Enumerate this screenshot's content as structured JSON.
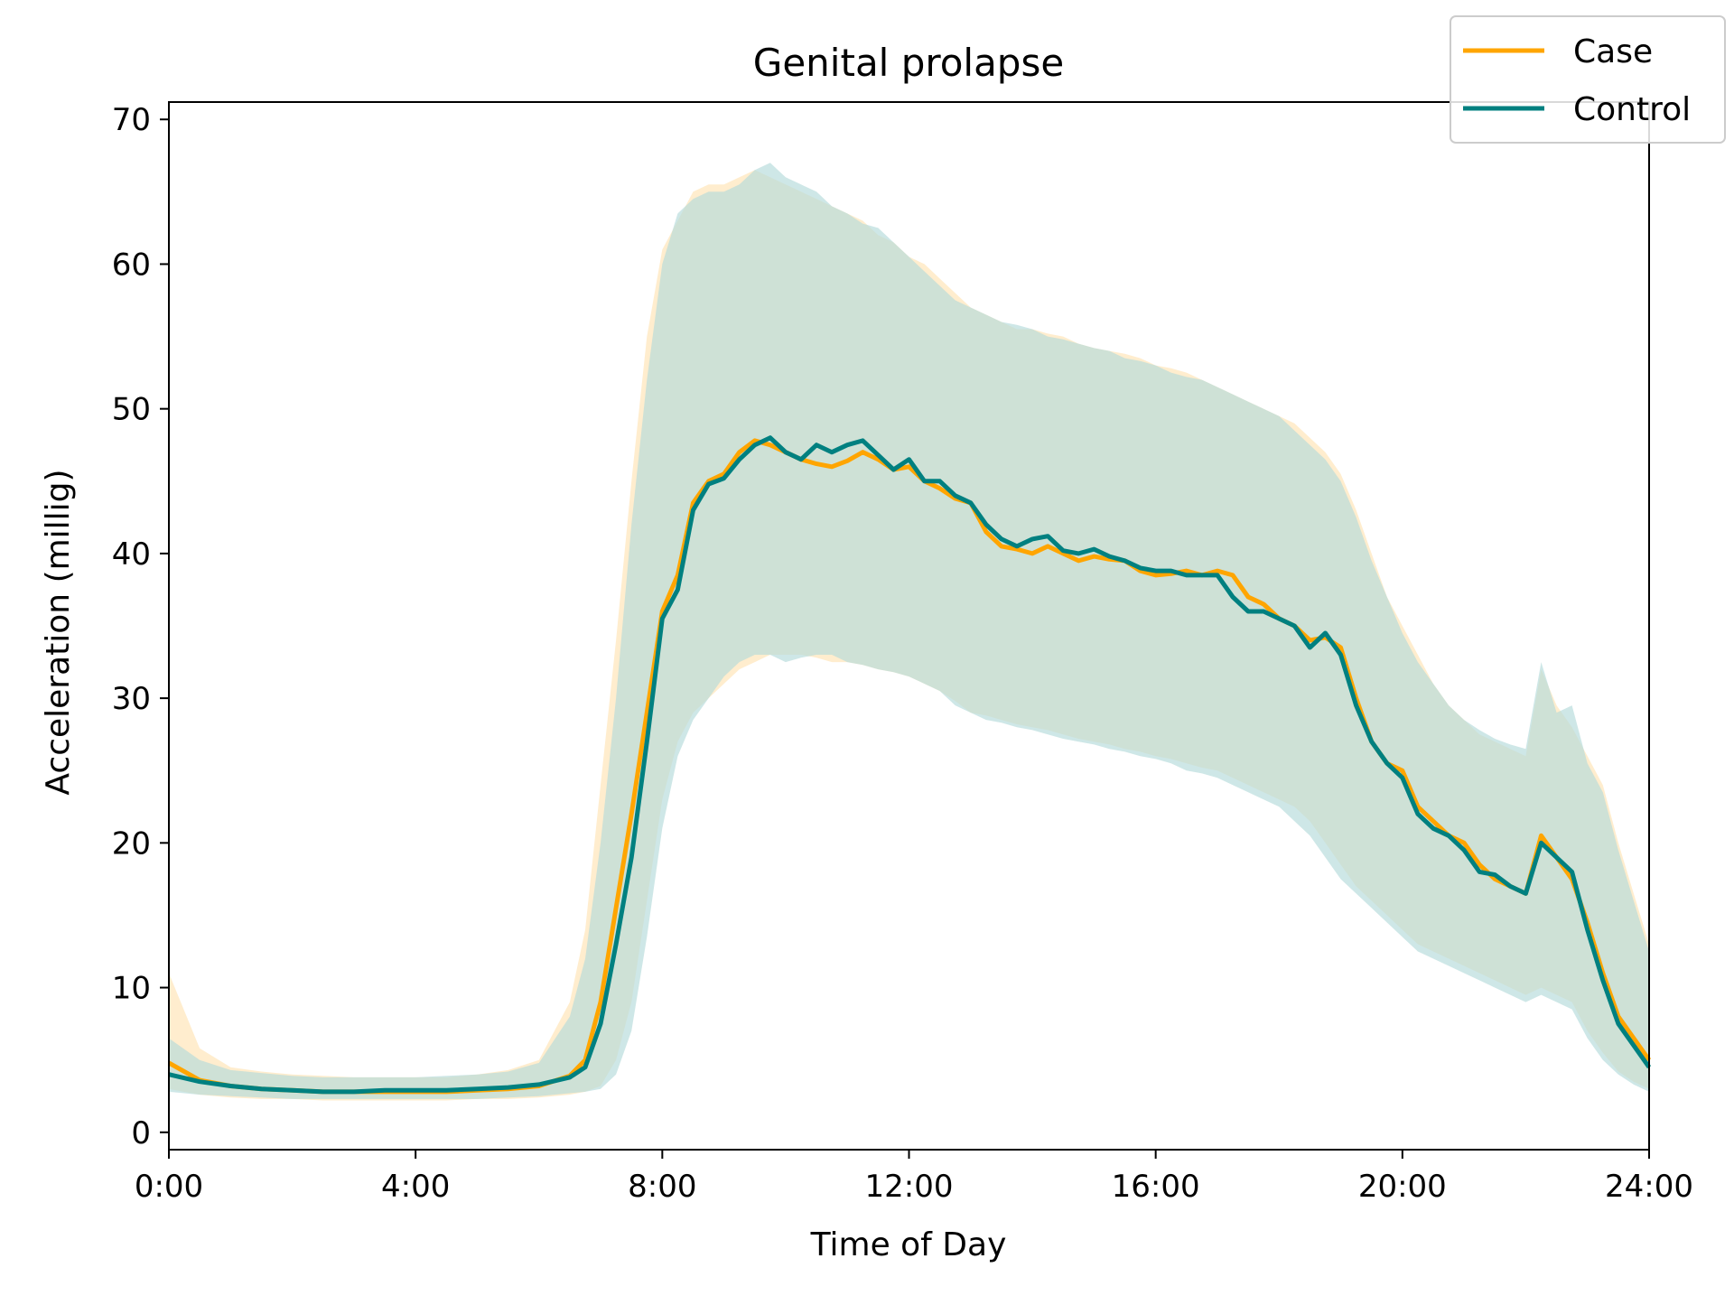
{
  "chart_data": {
    "type": "line",
    "title": "Genital prolapse",
    "xlabel": "Time of Day",
    "ylabel": "Acceleration (millig)",
    "xlim": [
      0,
      24
    ],
    "ylim": [
      -1.2,
      71.2
    ],
    "x_ticks": [
      {
        "value": 0,
        "label": "0:00"
      },
      {
        "value": 4,
        "label": "4:00"
      },
      {
        "value": 8,
        "label": "8:00"
      },
      {
        "value": 12,
        "label": "12:00"
      },
      {
        "value": 16,
        "label": "16:00"
      },
      {
        "value": 20,
        "label": "20:00"
      },
      {
        "value": 24,
        "label": "24:00"
      }
    ],
    "y_ticks": [
      {
        "value": 0,
        "label": "0"
      },
      {
        "value": 10,
        "label": "10"
      },
      {
        "value": 20,
        "label": "20"
      },
      {
        "value": 30,
        "label": "30"
      },
      {
        "value": 40,
        "label": "40"
      },
      {
        "value": 50,
        "label": "50"
      },
      {
        "value": 60,
        "label": "60"
      },
      {
        "value": 70,
        "label": "70"
      }
    ],
    "grid": false,
    "legend": {
      "position": "top-right"
    },
    "x": [
      0,
      0.5,
      1,
      1.5,
      2,
      2.5,
      3,
      3.5,
      4,
      4.5,
      5,
      5.5,
      6,
      6.5,
      6.75,
      7,
      7.25,
      7.5,
      7.75,
      8,
      8.25,
      8.5,
      8.75,
      9,
      9.25,
      9.5,
      9.75,
      10,
      10.25,
      10.5,
      10.75,
      11,
      11.25,
      11.5,
      11.75,
      12,
      12.25,
      12.5,
      12.75,
      13,
      13.25,
      13.5,
      13.75,
      14,
      14.25,
      14.5,
      14.75,
      15,
      15.25,
      15.5,
      15.75,
      16,
      16.25,
      16.5,
      16.75,
      17,
      17.25,
      17.5,
      17.75,
      18,
      18.25,
      18.5,
      18.75,
      19,
      19.25,
      19.5,
      19.75,
      20,
      20.25,
      20.5,
      20.75,
      21,
      21.25,
      21.5,
      21.75,
      22,
      22.25,
      22.5,
      22.75,
      23,
      23.25,
      23.5,
      23.75,
      24
    ],
    "series": [
      {
        "name": "Case",
        "color": "#ffa500",
        "band_color": "#ffe4b3",
        "values": [
          4.8,
          3.6,
          3.2,
          3.0,
          2.9,
          2.8,
          2.8,
          2.8,
          2.8,
          2.8,
          2.9,
          3.0,
          3.2,
          3.9,
          5.0,
          9.0,
          15.5,
          22.0,
          29.0,
          36.0,
          38.5,
          43.5,
          45.0,
          45.5,
          47.0,
          47.8,
          47.5,
          47.0,
          46.5,
          46.2,
          46.0,
          46.4,
          47.0,
          46.5,
          45.8,
          46.0,
          45.0,
          44.5,
          43.8,
          43.5,
          41.5,
          40.5,
          40.3,
          40.0,
          40.5,
          40.0,
          39.5,
          39.8,
          39.6,
          39.5,
          38.8,
          38.5,
          38.6,
          38.8,
          38.5,
          38.8,
          38.5,
          37.0,
          36.5,
          35.5,
          35.0,
          34.0,
          34.2,
          33.5,
          30.0,
          27.0,
          25.5,
          25.0,
          22.5,
          21.5,
          20.5,
          20.0,
          18.5,
          17.5,
          17.0,
          16.5,
          20.5,
          19.0,
          17.5,
          14.5,
          11.0,
          8.0,
          6.5,
          5.0
        ],
        "upper": [
          11.0,
          5.8,
          4.5,
          4.2,
          4.0,
          3.9,
          3.8,
          3.8,
          3.8,
          3.8,
          4.0,
          4.3,
          5.0,
          9.0,
          14.0,
          24.0,
          34.0,
          45.0,
          55.0,
          61.0,
          63.0,
          65.0,
          65.5,
          65.5,
          66.0,
          66.5,
          66.0,
          65.5,
          65.0,
          64.5,
          64.0,
          63.5,
          63.0,
          62.0,
          61.5,
          60.5,
          60.0,
          59.0,
          58.0,
          57.0,
          56.5,
          56.0,
          55.5,
          55.5,
          55.2,
          55.0,
          54.5,
          54.2,
          54.0,
          53.8,
          53.5,
          53.0,
          52.8,
          52.5,
          52.0,
          51.5,
          51.0,
          50.5,
          50.0,
          49.5,
          49.0,
          48.0,
          47.0,
          45.5,
          43.0,
          40.0,
          37.0,
          35.0,
          33.0,
          31.0,
          29.5,
          28.5,
          27.5,
          27.0,
          26.5,
          26.0,
          32.0,
          29.5,
          28.0,
          26.0,
          24.0,
          20.0,
          16.5,
          13.0
        ],
        "lower": [
          3.0,
          2.6,
          2.4,
          2.3,
          2.3,
          2.2,
          2.2,
          2.2,
          2.2,
          2.2,
          2.3,
          2.3,
          2.4,
          2.6,
          2.8,
          3.2,
          5.0,
          9.0,
          16.0,
          23.0,
          27.0,
          29.0,
          30.0,
          31.0,
          32.0,
          32.5,
          33.0,
          33.0,
          33.0,
          32.8,
          32.5,
          32.5,
          32.3,
          32.0,
          31.8,
          31.5,
          31.0,
          30.5,
          29.8,
          29.0,
          28.8,
          28.5,
          28.2,
          28.0,
          27.8,
          27.5,
          27.2,
          27.0,
          26.8,
          26.5,
          26.3,
          26.0,
          25.8,
          25.5,
          25.2,
          25.0,
          24.5,
          24.0,
          23.5,
          23.0,
          22.5,
          21.5,
          20.0,
          18.5,
          17.0,
          16.0,
          15.0,
          14.0,
          13.0,
          12.5,
          12.0,
          11.5,
          11.0,
          10.5,
          10.0,
          9.5,
          10.0,
          9.5,
          9.0,
          7.0,
          5.5,
          4.2,
          3.5,
          3.0
        ]
      },
      {
        "name": "Control",
        "color": "#008080",
        "band_color": "#b3dada",
        "values": [
          4.0,
          3.5,
          3.2,
          3.0,
          2.9,
          2.8,
          2.8,
          2.9,
          2.9,
          2.9,
          3.0,
          3.1,
          3.3,
          3.8,
          4.5,
          7.5,
          13.0,
          19.0,
          27.0,
          35.5,
          37.5,
          43.0,
          44.8,
          45.2,
          46.5,
          47.5,
          48.0,
          47.0,
          46.5,
          47.5,
          47.0,
          47.5,
          47.8,
          46.8,
          45.8,
          46.5,
          45.0,
          45.0,
          44.0,
          43.5,
          42.0,
          41.0,
          40.5,
          41.0,
          41.2,
          40.2,
          40.0,
          40.3,
          39.8,
          39.5,
          39.0,
          38.8,
          38.8,
          38.5,
          38.5,
          38.5,
          37.0,
          36.0,
          36.0,
          35.5,
          35.0,
          33.5,
          34.5,
          33.0,
          29.5,
          27.0,
          25.5,
          24.5,
          22.0,
          21.0,
          20.5,
          19.5,
          18.0,
          17.8,
          17.0,
          16.5,
          20.0,
          19.0,
          18.0,
          14.0,
          10.5,
          7.5,
          6.0,
          4.5
        ],
        "upper": [
          6.5,
          5.0,
          4.3,
          4.1,
          3.9,
          3.8,
          3.8,
          3.8,
          3.8,
          3.9,
          4.0,
          4.2,
          4.8,
          8.0,
          12.0,
          20.0,
          30.0,
          42.0,
          52.0,
          60.0,
          63.5,
          64.5,
          65.0,
          65.0,
          65.5,
          66.5,
          67.0,
          66.0,
          65.5,
          65.0,
          64.0,
          63.5,
          62.8,
          62.5,
          61.5,
          60.5,
          59.5,
          58.5,
          57.5,
          57.0,
          56.5,
          56.0,
          55.8,
          55.5,
          55.0,
          54.8,
          54.5,
          54.2,
          54.0,
          53.5,
          53.3,
          53.0,
          52.5,
          52.2,
          52.0,
          51.5,
          51.0,
          50.5,
          50.0,
          49.5,
          48.5,
          47.5,
          46.5,
          45.0,
          42.5,
          39.5,
          37.0,
          34.5,
          32.5,
          31.0,
          29.5,
          28.5,
          27.8,
          27.2,
          26.8,
          26.5,
          32.5,
          29.0,
          29.5,
          25.5,
          23.5,
          19.5,
          16.0,
          12.5
        ],
        "lower": [
          2.8,
          2.6,
          2.5,
          2.4,
          2.3,
          2.3,
          2.3,
          2.3,
          2.3,
          2.3,
          2.3,
          2.4,
          2.5,
          2.7,
          2.8,
          3.0,
          4.0,
          7.0,
          13.5,
          21.0,
          26.0,
          28.5,
          30.0,
          31.5,
          32.5,
          33.0,
          33.0,
          32.5,
          32.8,
          33.0,
          33.0,
          32.5,
          32.3,
          32.0,
          31.8,
          31.5,
          31.0,
          30.5,
          29.5,
          29.0,
          28.5,
          28.3,
          28.0,
          27.8,
          27.5,
          27.2,
          27.0,
          26.8,
          26.5,
          26.3,
          26.0,
          25.8,
          25.5,
          25.0,
          24.8,
          24.5,
          24.0,
          23.5,
          23.0,
          22.5,
          21.5,
          20.5,
          19.0,
          17.5,
          16.5,
          15.5,
          14.5,
          13.5,
          12.5,
          12.0,
          11.5,
          11.0,
          10.5,
          10.0,
          9.5,
          9.0,
          9.5,
          9.0,
          8.5,
          6.5,
          5.0,
          4.0,
          3.3,
          2.8
        ]
      }
    ]
  }
}
